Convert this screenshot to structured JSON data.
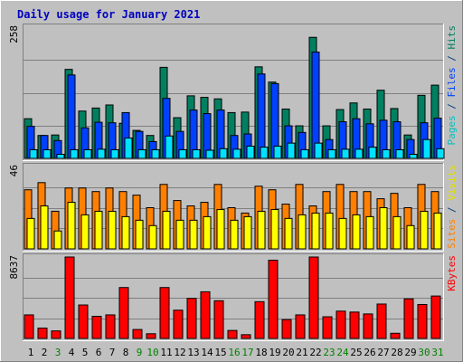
{
  "chart_data": [
    {
      "type": "bar",
      "title": "Daily usage for January 2021",
      "y_max_label": "258",
      "ylim": [
        0,
        258
      ],
      "legend_right": [
        {
          "text": "Pages",
          "color": "#00c0c0"
        },
        {
          "text": " / ",
          "color": "#004080"
        },
        {
          "text": "Files",
          "color": "#0040ff"
        },
        {
          "text": " / ",
          "color": "#004080"
        },
        {
          "text": "Hits",
          "color": "#008060"
        }
      ],
      "categories": [
        "1",
        "2",
        "3",
        "4",
        "5",
        "6",
        "7",
        "8",
        "9",
        "10",
        "11",
        "12",
        "13",
        "14",
        "15",
        "16",
        "17",
        "18",
        "19",
        "20",
        "21",
        "22",
        "23",
        "24",
        "25",
        "26",
        "27",
        "28",
        "29",
        "30",
        "31"
      ],
      "weekend_days": [
        "3",
        "9",
        "10",
        "16",
        "17",
        "23",
        "24",
        "30",
        "31"
      ],
      "series": [
        {
          "name": "Hits",
          "color": "#008060",
          "values": [
            78,
            45,
            46,
            175,
            93,
            99,
            105,
            69,
            55,
            45,
            179,
            80,
            123,
            120,
            117,
            90,
            91,
            180,
            150,
            97,
            64,
            238,
            64,
            96,
            109,
            97,
            134,
            98,
            46,
            124,
            144
          ]
        },
        {
          "name": "Files",
          "color": "#0040ff",
          "values": [
            63,
            45,
            35,
            164,
            60,
            71,
            70,
            90,
            53,
            33,
            118,
            53,
            95,
            88,
            95,
            45,
            48,
            166,
            147,
            64,
            51,
            209,
            37,
            72,
            78,
            68,
            75,
            72,
            37,
            70,
            79
          ]
        },
        {
          "name": "Pages",
          "color": "#00e0ff",
          "values": [
            17,
            17,
            8,
            17,
            17,
            18,
            17,
            40,
            17,
            17,
            44,
            17,
            17,
            16,
            19,
            18,
            24,
            22,
            24,
            30,
            17,
            30,
            17,
            18,
            18,
            22,
            17,
            17,
            8,
            37,
            19
          ]
        }
      ]
    },
    {
      "type": "bar",
      "y_max_label": "46",
      "ylim": [
        0,
        46
      ],
      "legend_right": [
        {
          "text": "Sites",
          "color": "#ff8000"
        },
        {
          "text": " / ",
          "color": "#004080"
        },
        {
          "text": "Visits",
          "color": "#e0e000"
        }
      ],
      "categories": [
        "1",
        "2",
        "3",
        "4",
        "5",
        "6",
        "7",
        "8",
        "9",
        "10",
        "11",
        "12",
        "13",
        "14",
        "15",
        "16",
        "17",
        "18",
        "19",
        "20",
        "21",
        "22",
        "23",
        "24",
        "25",
        "26",
        "27",
        "28",
        "29",
        "30",
        "31"
      ],
      "series": [
        {
          "name": "Sites",
          "color": "#ff8000",
          "values": [
            33,
            37,
            21,
            34,
            34,
            32,
            34,
            32,
            30,
            23,
            36,
            27,
            24,
            26,
            36,
            23,
            20,
            35,
            33,
            25,
            36,
            24,
            32,
            36,
            32,
            32,
            28,
            31,
            23,
            36,
            32
          ]
        },
        {
          "name": "Visits",
          "color": "#ffff00",
          "values": [
            17,
            24,
            10,
            26,
            19,
            21,
            21,
            18,
            16,
            13,
            21,
            16,
            16,
            18,
            22,
            16,
            18,
            21,
            22,
            17,
            19,
            20,
            20,
            17,
            19,
            18,
            23,
            18,
            13,
            21,
            20
          ]
        }
      ]
    },
    {
      "type": "bar",
      "y_max_label": "8637",
      "ylim": [
        0,
        8637
      ],
      "legend_right": [
        {
          "text": "KBytes",
          "color": "#ff0000"
        }
      ],
      "categories": [
        "1",
        "2",
        "3",
        "4",
        "5",
        "6",
        "7",
        "8",
        "9",
        "10",
        "11",
        "12",
        "13",
        "14",
        "15",
        "16",
        "17",
        "18",
        "19",
        "20",
        "21",
        "22",
        "23",
        "24",
        "25",
        "26",
        "27",
        "28",
        "29",
        "30",
        "31"
      ],
      "series": [
        {
          "name": "KBytes",
          "color": "#ff0000",
          "values": [
            2500,
            1100,
            800,
            8637,
            3550,
            2350,
            2500,
            5400,
            950,
            500,
            5400,
            3000,
            4250,
            4950,
            4000,
            850,
            400,
            3900,
            8300,
            2000,
            2500,
            8637,
            2300,
            2900,
            2800,
            2600,
            3650,
            550,
            4200,
            3600,
            4500
          ]
        }
      ]
    }
  ]
}
